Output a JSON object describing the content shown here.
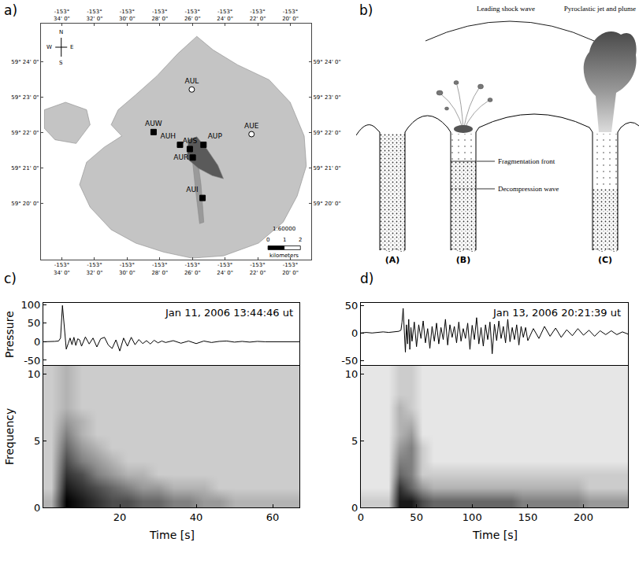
{
  "map": {
    "panel": "a)",
    "xlim": [
      -153.588,
      -153.312
    ],
    "ylim": [
      59.307,
      59.418
    ],
    "xticks": [
      {
        "value": -153.5667,
        "label": "-153° 34' 0\""
      },
      {
        "value": -153.5333,
        "label": "-153° 32' 0\""
      },
      {
        "value": -153.5,
        "label": "-153° 30' 0\""
      },
      {
        "value": -153.4667,
        "label": "-153° 28' 0\""
      },
      {
        "value": -153.4333,
        "label": "-153° 26' 0\""
      },
      {
        "value": -153.4,
        "label": "-153° 24' 0\""
      },
      {
        "value": -153.3667,
        "label": "-153° 22' 0\""
      },
      {
        "value": -153.3333,
        "label": "-153° 20' 0\""
      }
    ],
    "yticks": [
      {
        "value": 59.3333,
        "label": "59° 20' 0\""
      },
      {
        "value": 59.35,
        "label": "59° 21' 0\""
      },
      {
        "value": 59.3667,
        "label": "59° 22' 0\""
      },
      {
        "value": 59.3833,
        "label": "59° 23' 0\""
      },
      {
        "value": 59.4,
        "label": "59° 24' 0\""
      }
    ],
    "stations": [
      {
        "name": "AUL",
        "lon": -153.434,
        "lat": 59.387,
        "marker": "circle"
      },
      {
        "name": "AUW",
        "lon": -153.473,
        "lat": 59.367,
        "marker": "square"
      },
      {
        "name": "AUH",
        "lon": -153.446,
        "lat": 59.361,
        "marker": "square"
      },
      {
        "name": "AUS",
        "lon": -153.436,
        "lat": 59.359,
        "marker": "square"
      },
      {
        "name": "AUP",
        "lon": -153.422,
        "lat": 59.361,
        "marker": "square"
      },
      {
        "name": "AUR",
        "lon": -153.433,
        "lat": 59.355,
        "marker": "square"
      },
      {
        "name": "AUI",
        "lon": -153.423,
        "lat": 59.336,
        "marker": "square"
      },
      {
        "name": "AUE",
        "lon": -153.373,
        "lat": 59.366,
        "marker": "circle"
      }
    ],
    "compass": [
      "N",
      "E",
      "S",
      "W"
    ],
    "scale": {
      "label": "1:60000",
      "unit": "kilometers",
      "ticks": [
        0,
        1,
        2
      ]
    }
  },
  "diagram": {
    "panel": "b)",
    "shock_label": "Leading shock wave",
    "plume_label": "Pyroclastic jet and plume",
    "fragmentation_label": "Fragmentation front",
    "decompression_label": "Decompression wave",
    "stages": [
      "(A)",
      "(B)",
      "(C)"
    ]
  },
  "chart_data": [
    {
      "panel": "c)",
      "type": "line",
      "title": "Jan 11, 2006 13:44:46 ut",
      "y_label": "Pressure",
      "color": "#000000",
      "x": [
        0,
        1,
        2,
        3,
        4,
        4.5,
        5,
        5.5,
        6,
        6.5,
        7,
        7.5,
        8,
        8.5,
        9,
        9.5,
        10,
        11,
        12,
        13,
        14,
        15,
        16,
        17,
        18,
        19,
        20,
        21,
        22,
        23,
        24,
        25,
        26,
        27,
        28,
        29,
        30,
        31,
        32,
        34,
        36,
        38,
        40,
        42,
        44,
        46,
        48,
        50,
        52,
        54,
        56,
        58,
        60,
        62,
        64,
        66,
        67
      ],
      "values": [
        0,
        0,
        0,
        1,
        2,
        10,
        98,
        40,
        -20,
        -5,
        10,
        -8,
        12,
        -10,
        8,
        5,
        -12,
        13,
        -6,
        10,
        -14,
        8,
        12,
        -9,
        -18,
        5,
        -25,
        10,
        -12,
        12,
        -8,
        6,
        -5,
        3,
        -6,
        4,
        -3,
        2,
        -2,
        3,
        -4,
        2,
        -5,
        2,
        -2,
        1,
        2,
        -1,
        1,
        -1,
        1,
        0,
        0,
        1,
        0,
        0,
        0
      ],
      "xlim": [
        0,
        67
      ],
      "ylim": [
        -65,
        105
      ],
      "yticks": [
        -50,
        0,
        50,
        100
      ],
      "tick_labels": "y"
    },
    {
      "type": "heatmap",
      "x_label": "Time [s]",
      "y_label": "Frequency",
      "x": [
        2,
        6,
        10,
        14,
        18,
        22,
        26,
        30,
        34,
        38,
        42,
        46,
        50,
        54,
        58,
        62,
        66
      ],
      "y": [
        0.5,
        1.5,
        2.5,
        3.5,
        4.5,
        5.5,
        6.5,
        7.5,
        8.5,
        9.5,
        10.5
      ],
      "cells": [
        [
          3,
          10,
          9,
          8,
          7,
          7,
          6,
          6,
          5,
          5,
          4,
          4,
          3,
          3,
          3,
          3,
          3
        ],
        [
          2,
          9,
          8,
          7,
          6,
          5,
          4,
          4,
          3,
          3,
          3,
          2,
          2,
          2,
          2,
          2,
          2
        ],
        [
          2,
          8,
          7,
          5,
          4,
          3,
          3,
          2,
          2,
          2,
          2,
          2,
          2,
          2,
          2,
          2,
          2
        ],
        [
          2,
          7,
          5,
          4,
          3,
          2,
          2,
          2,
          2,
          2,
          2,
          2,
          2,
          2,
          2,
          2,
          2
        ],
        [
          2,
          6,
          4,
          3,
          2,
          2,
          2,
          2,
          2,
          2,
          2,
          2,
          2,
          2,
          2,
          2,
          2
        ],
        [
          2,
          5,
          3,
          2,
          2,
          2,
          2,
          2,
          2,
          2,
          2,
          2,
          2,
          2,
          2,
          2,
          2
        ],
        [
          2,
          4,
          3,
          2,
          2,
          2,
          2,
          2,
          2,
          2,
          2,
          2,
          2,
          2,
          2,
          2,
          2
        ],
        [
          2,
          3,
          2,
          2,
          2,
          2,
          2,
          2,
          2,
          2,
          2,
          2,
          2,
          2,
          2,
          2,
          2
        ],
        [
          2,
          3,
          2,
          2,
          2,
          2,
          2,
          2,
          2,
          2,
          2,
          2,
          2,
          2,
          2,
          2,
          2
        ],
        [
          2,
          3,
          2,
          2,
          2,
          2,
          2,
          2,
          2,
          2,
          2,
          2,
          2,
          2,
          2,
          2,
          2
        ],
        [
          2,
          3,
          2,
          2,
          2,
          2,
          2,
          2,
          2,
          2,
          2,
          2,
          2,
          2,
          2,
          2,
          2
        ]
      ],
      "zlim": [
        0,
        10
      ],
      "xlim": [
        0,
        67
      ],
      "ylim": [
        0,
        10.6
      ],
      "xticks": [
        20,
        40,
        60
      ],
      "yticks": [
        0,
        5,
        10
      ]
    },
    {
      "panel": "d)",
      "type": "line",
      "title": "Jan 13, 2006 20:21:39 ut",
      "color": "#000000",
      "x": [
        0,
        5,
        10,
        15,
        20,
        25,
        30,
        32,
        34,
        36,
        37,
        38,
        39,
        40,
        41,
        42,
        43,
        44,
        45,
        46,
        48,
        50,
        52,
        54,
        56,
        58,
        60,
        62,
        64,
        66,
        68,
        70,
        72,
        74,
        76,
        78,
        80,
        82,
        84,
        86,
        88,
        90,
        92,
        94,
        96,
        98,
        100,
        102,
        104,
        106,
        108,
        110,
        112,
        114,
        116,
        118,
        120,
        122,
        124,
        126,
        128,
        130,
        132,
        134,
        136,
        138,
        140,
        142,
        144,
        146,
        148,
        150,
        155,
        160,
        165,
        170,
        175,
        180,
        185,
        190,
        195,
        200,
        205,
        210,
        215,
        220,
        225,
        230,
        235,
        240
      ],
      "values": [
        0,
        1,
        0,
        1,
        2,
        1,
        2,
        2,
        3,
        5,
        20,
        45,
        10,
        -35,
        15,
        -20,
        25,
        -30,
        10,
        -15,
        20,
        -25,
        15,
        -10,
        22,
        -18,
        8,
        -28,
        12,
        -15,
        18,
        -20,
        10,
        -12,
        25,
        -22,
        15,
        -8,
        12,
        -18,
        20,
        -15,
        8,
        -10,
        18,
        -30,
        14,
        -12,
        28,
        -20,
        10,
        -24,
        15,
        -12,
        20,
        -38,
        16,
        -14,
        22,
        -10,
        12,
        -18,
        25,
        -16,
        10,
        -12,
        15,
        -22,
        12,
        -8,
        10,
        -14,
        8,
        -10,
        12,
        -6,
        9,
        -8,
        6,
        -5,
        8,
        -4,
        5,
        -6,
        4,
        -3,
        4,
        -3,
        2,
        -2
      ],
      "xlim": [
        0,
        240
      ],
      "ylim": [
        -60,
        55
      ],
      "yticks": [
        -50,
        0,
        50
      ],
      "tick_labels": "y"
    },
    {
      "type": "heatmap",
      "x_label": "Time [s]",
      "x": [
        5,
        15,
        25,
        35,
        45,
        55,
        65,
        75,
        85,
        95,
        105,
        115,
        125,
        135,
        145,
        155,
        165,
        175,
        185,
        195,
        205,
        215,
        225,
        235
      ],
      "y": [
        0.5,
        1.5,
        2.5,
        3.5,
        4.5,
        5.5,
        6.5,
        7.5,
        8.5,
        9.5,
        10.5
      ],
      "cells": [
        [
          2,
          2,
          2,
          9,
          9,
          7,
          6,
          6,
          6,
          6,
          6,
          6,
          6,
          6,
          5,
          5,
          5,
          5,
          5,
          5,
          4,
          4,
          4,
          4
        ],
        [
          1,
          1,
          1,
          8,
          6,
          4,
          3,
          3,
          3,
          3,
          3,
          3,
          3,
          3,
          3,
          3,
          3,
          3,
          3,
          3,
          2,
          2,
          2,
          2
        ],
        [
          1,
          1,
          1,
          6,
          5,
          2,
          2,
          2,
          2,
          2,
          2,
          2,
          2,
          2,
          2,
          2,
          2,
          2,
          2,
          2,
          2,
          2,
          2,
          2
        ],
        [
          1,
          1,
          1,
          5,
          5,
          2,
          1,
          1,
          1,
          1,
          1,
          1,
          1,
          1,
          1,
          1,
          1,
          1,
          1,
          1,
          1,
          1,
          1,
          1
        ],
        [
          1,
          1,
          1,
          4,
          5,
          2,
          1,
          1,
          1,
          1,
          1,
          1,
          1,
          1,
          1,
          1,
          1,
          1,
          1,
          1,
          1,
          1,
          1,
          1
        ],
        [
          1,
          1,
          1,
          3,
          4,
          1,
          1,
          1,
          1,
          1,
          1,
          1,
          1,
          1,
          1,
          1,
          1,
          1,
          1,
          1,
          1,
          1,
          1,
          1
        ],
        [
          1,
          1,
          1,
          3,
          3,
          1,
          1,
          1,
          1,
          1,
          1,
          1,
          1,
          1,
          1,
          1,
          1,
          1,
          1,
          1,
          1,
          1,
          1,
          1
        ],
        [
          1,
          1,
          1,
          3,
          2,
          1,
          1,
          1,
          1,
          1,
          1,
          1,
          1,
          1,
          1,
          1,
          1,
          1,
          1,
          1,
          1,
          1,
          1,
          1
        ],
        [
          1,
          1,
          1,
          2,
          2,
          1,
          1,
          1,
          1,
          1,
          1,
          1,
          1,
          1,
          1,
          1,
          1,
          1,
          1,
          1,
          1,
          1,
          1,
          1
        ],
        [
          1,
          1,
          1,
          2,
          2,
          1,
          1,
          1,
          1,
          1,
          1,
          1,
          1,
          1,
          1,
          1,
          1,
          1,
          1,
          1,
          1,
          1,
          1,
          1
        ],
        [
          1,
          1,
          1,
          2,
          2,
          1,
          1,
          1,
          1,
          1,
          1,
          1,
          1,
          1,
          1,
          1,
          1,
          1,
          1,
          1,
          1,
          1,
          1,
          1
        ]
      ],
      "zlim": [
        0,
        10
      ],
      "xlim": [
        0,
        240
      ],
      "ylim": [
        0,
        10.6
      ],
      "xticks": [
        0,
        50,
        100,
        150,
        200
      ],
      "yticks": [
        0,
        5,
        10
      ]
    }
  ]
}
